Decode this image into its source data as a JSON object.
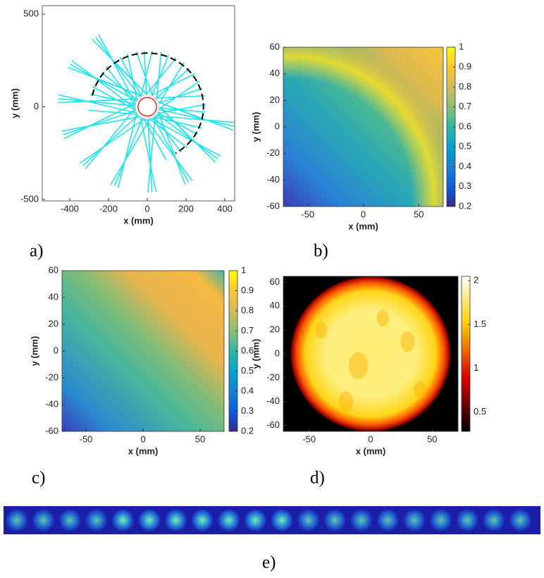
{
  "chart_data": [
    {
      "type": "line",
      "panel_label": "a)",
      "xlabel": "x (mm)",
      "ylabel": "y (mm)",
      "xlim": [
        -542,
        451
      ],
      "ylim": [
        -508,
        546
      ],
      "xticks": [
        -400,
        -200,
        0,
        200,
        400
      ],
      "yticks": [
        -500,
        0,
        500
      ],
      "color": "#22e3ea"
    },
    {
      "type": "heatmap",
      "panel_label": "b)",
      "xlabel": "x (mm)",
      "ylabel": "y (mm)",
      "colormap": "parula",
      "xlim": [
        -72,
        72
      ],
      "ylim": [
        -60,
        60
      ],
      "xticks": [
        -50,
        0,
        50
      ],
      "yticks": [
        -60,
        -40,
        -20,
        0,
        20,
        40,
        60
      ],
      "clim": [
        0.2,
        1
      ],
      "cticks": [
        0.2,
        0.3,
        0.4,
        0.5,
        0.6,
        0.7,
        0.8,
        0.9,
        1
      ]
    },
    {
      "type": "heatmap",
      "panel_label": "c)",
      "xlabel": "x (mm)",
      "ylabel": "y (mm)",
      "colormap": "parula",
      "xlim": [
        -71,
        71
      ],
      "ylim": [
        -60,
        60
      ],
      "xticks": [
        -50,
        0,
        50
      ],
      "yticks": [
        -60,
        -40,
        -20,
        0,
        20,
        40,
        60
      ],
      "clim": [
        0.2,
        1
      ],
      "cticks": [
        0.2,
        0.3,
        0.4,
        0.5,
        0.6,
        0.7,
        0.8,
        0.9,
        1
      ]
    },
    {
      "type": "heatmap",
      "panel_label": "d)",
      "xlabel": "x (mm)",
      "ylabel": "y (mm)",
      "colormap": "hot",
      "xlim": [
        -71,
        71
      ],
      "ylim": [
        -65,
        65
      ],
      "xticks": [
        -50,
        0,
        50
      ],
      "yticks": [
        -60,
        -40,
        -20,
        0,
        20,
        40,
        60
      ],
      "clim": [
        0.28,
        2.05
      ],
      "cticks": [
        0.5,
        1,
        1.5,
        2
      ]
    },
    {
      "type": "image",
      "panel_label": "e)"
    }
  ]
}
